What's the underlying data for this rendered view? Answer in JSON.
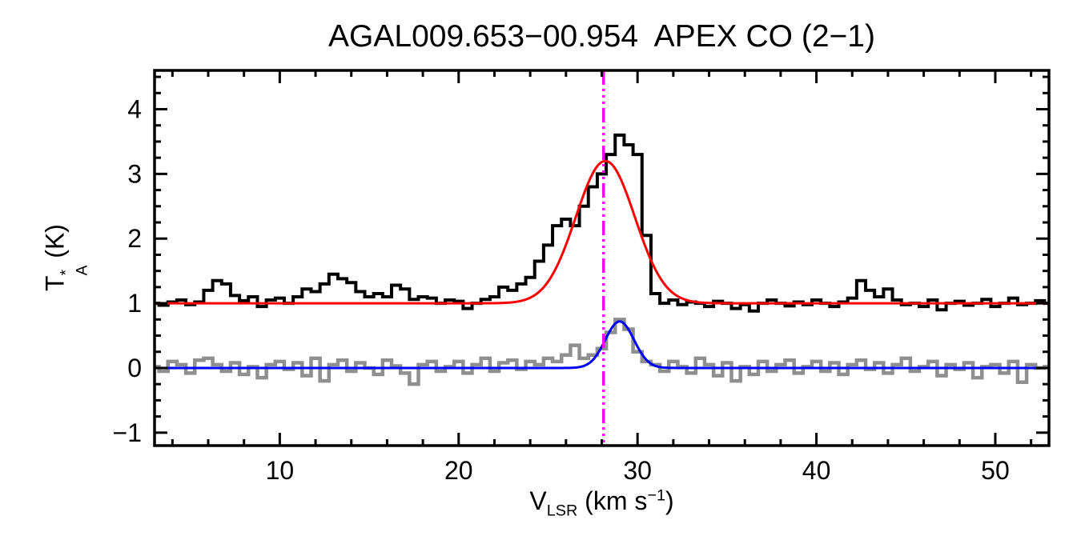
{
  "chart_data": {
    "type": "line",
    "title": "AGAL009.653−00.954  APEX CO (2−1)",
    "xlabel_parts": {
      "main": "V",
      "sub": "LSR",
      "mid": " (km s",
      "sup": "−1",
      "post": ")"
    },
    "ylabel_parts": {
      "main": "T",
      "sup": "*",
      "sub": "A",
      "rest": " (K)"
    },
    "xlim": [
      3,
      53
    ],
    "ylim": [
      -1.2,
      4.6
    ],
    "xticks": [
      10,
      20,
      30,
      40,
      50
    ],
    "yticks": [
      -1,
      0,
      1,
      2,
      3,
      4
    ],
    "x_minor_step": 2,
    "y_minor_step": 0.25,
    "grid": false,
    "legend": null,
    "colors": {
      "axis": "#000000",
      "black_spectrum": "#000000",
      "gray_spectrum": "#8f8f8f",
      "red_fit": "#ff0000",
      "blue_fit": "#0000ff",
      "velocity_marker": "#ff00ff"
    },
    "series": [
      {
        "name": "black-spectrum",
        "color": "#000000",
        "line_width": 4,
        "x_start": 3.0,
        "x_step": 0.5,
        "values": [
          1.0,
          0.97,
          1.02,
          1.05,
          0.98,
          1.02,
          1.2,
          1.35,
          1.3,
          1.12,
          1.04,
          1.1,
          0.95,
          1.05,
          1.08,
          1.0,
          1.1,
          1.22,
          1.18,
          1.3,
          1.45,
          1.38,
          1.32,
          1.18,
          1.1,
          1.15,
          1.1,
          1.28,
          1.22,
          1.06,
          1.1,
          1.08,
          1.0,
          1.05,
          1.03,
          0.92,
          1.0,
          1.06,
          1.1,
          1.25,
          1.2,
          1.3,
          1.4,
          1.65,
          1.9,
          2.2,
          2.3,
          2.2,
          2.5,
          2.8,
          3.0,
          3.3,
          3.6,
          3.45,
          3.3,
          2.05,
          1.15,
          1.0,
          1.05,
          0.98,
          1.02,
          1.0,
          0.95,
          1.03,
          1.0,
          0.92,
          0.98,
          0.88,
          1.0,
          1.05,
          1.0,
          0.96,
          1.02,
          0.98,
          1.05,
          1.0,
          0.95,
          1.02,
          1.08,
          1.35,
          1.2,
          1.1,
          1.22,
          1.05,
          0.98,
          1.0,
          0.95,
          1.05,
          0.9,
          1.0,
          1.03,
          0.97,
          1.0,
          1.06,
          0.95,
          1.0,
          1.08,
          0.98,
          1.0,
          1.04,
          1.0
        ]
      },
      {
        "name": "gray-spectrum",
        "color": "#8f8f8f",
        "line_width": 4.5,
        "x_start": 3.0,
        "x_step": 0.5,
        "values": [
          0.02,
          -0.05,
          0.1,
          0.05,
          -0.08,
          0.12,
          0.15,
          0.05,
          -0.05,
          0.08,
          -0.1,
          0.02,
          -0.15,
          0.05,
          0.1,
          -0.02,
          0.08,
          -0.12,
          0.15,
          -0.2,
          0.05,
          0.12,
          -0.05,
          0.08,
          0.0,
          -0.1,
          0.12,
          0.03,
          -0.08,
          -0.25,
          0.05,
          0.1,
          -0.05,
          0.02,
          0.1,
          -0.08,
          0.05,
          0.15,
          -0.05,
          0.08,
          0.12,
          -0.02,
          0.1,
          0.05,
          0.15,
          0.1,
          0.2,
          0.35,
          0.15,
          0.2,
          0.3,
          0.55,
          0.75,
          0.6,
          0.25,
          0.1,
          0.05,
          -0.05,
          0.1,
          0.02,
          -0.08,
          0.15,
          0.05,
          -0.12,
          0.08,
          -0.2,
          0.02,
          -0.1,
          0.1,
          -0.05,
          0.05,
          0.12,
          -0.08,
          0.02,
          0.1,
          -0.05,
          0.08,
          -0.1,
          0.05,
          0.12,
          -0.02,
          0.08,
          -0.08,
          0.05,
          0.15,
          -0.05,
          0.02,
          0.1,
          -0.12,
          0.05,
          -0.02,
          0.08,
          -0.15,
          0.02,
          0.05,
          -0.08,
          0.1,
          -0.22,
          0.05,
          0.0,
          0.02
        ]
      }
    ],
    "fits": [
      {
        "name": "red-gaussian-fit",
        "color": "#ff0000",
        "baseline": 1.0,
        "amplitude": 2.2,
        "center": 28.2,
        "sigma": 1.65,
        "line_width": 3
      },
      {
        "name": "blue-gaussian-fit",
        "color": "#0000ff",
        "baseline": 0.0,
        "amplitude": 0.72,
        "center": 29.0,
        "sigma": 0.8,
        "line_width": 3
      }
    ],
    "vline": {
      "x": 28.1,
      "color": "#ff00ff",
      "style": "dash-dot-dot",
      "line_width": 3.5
    }
  }
}
